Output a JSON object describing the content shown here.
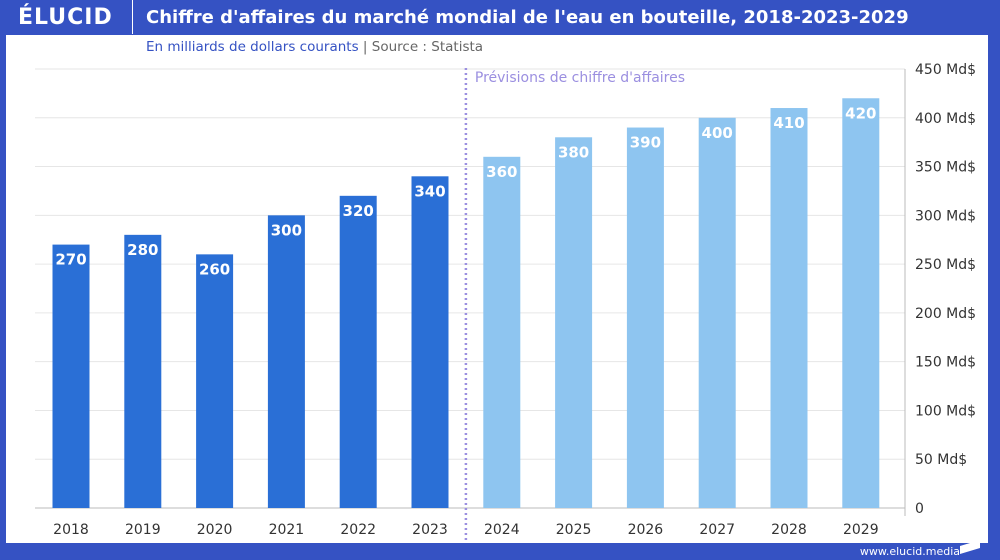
{
  "header": {
    "logo": "ÉLUCID",
    "title": "Chiffre d'affaires du marché mondial de l'eau en bouteille, 2018-2023-2029"
  },
  "subtitle": {
    "unit": "En milliards de dollars courants",
    "separator": "|",
    "source": "Source : Statista"
  },
  "footer": {
    "url": "www.elucid.media"
  },
  "chart_data": {
    "type": "bar",
    "categories": [
      "2018",
      "2019",
      "2020",
      "2021",
      "2022",
      "2023",
      "2024",
      "2025",
      "2026",
      "2027",
      "2028",
      "2029"
    ],
    "values": [
      270,
      280,
      260,
      300,
      320,
      340,
      360,
      380,
      390,
      400,
      410,
      420
    ],
    "data_labels": [
      "270",
      "280",
      "260",
      "300",
      "320",
      "340",
      "360",
      "380",
      "390",
      "400",
      "410",
      "420"
    ],
    "forecast_from": "2024",
    "annotation": "Prévisions de chiffre d'affaires",
    "ylim": [
      0,
      450
    ],
    "yticks": [
      0,
      50,
      100,
      150,
      200,
      250,
      300,
      350,
      400,
      450
    ],
    "ytick_labels": [
      "0",
      "50 Md$",
      "100 Md$",
      "150 Md$",
      "200 Md$",
      "250 Md$",
      "300 Md$",
      "350 Md$",
      "400 Md$",
      "450 Md$"
    ],
    "yaxis_position": "right",
    "grid": true,
    "colors": {
      "actual": "#2a6fd6",
      "forecast": "#8ec5f0",
      "annotation": "#9b8fe0"
    }
  }
}
